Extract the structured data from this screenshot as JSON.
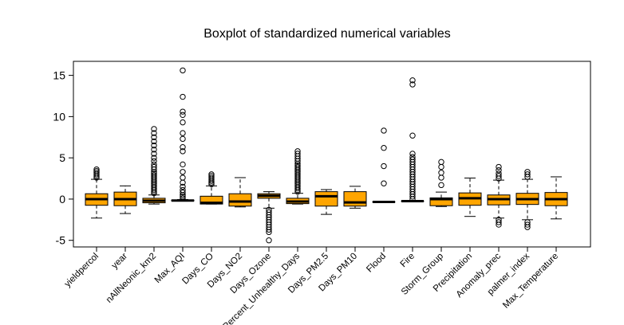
{
  "chart_data": {
    "type": "boxplot",
    "title": "Boxplot of standardized numerical variables",
    "xlabel": "",
    "ylabel": "",
    "ylim": [
      -5.8,
      16.7
    ],
    "yticks": [
      -5,
      0,
      5,
      10,
      15
    ],
    "grid": false,
    "legend": "none",
    "box_color": "#FFA500",
    "categories": [
      "yieldpercol",
      "year",
      "nAllNeonic_km2",
      "Max_AQI",
      "Days_CO",
      "Days_NO2",
      "Days_Ozone",
      "Percent_Unhealthy_Days",
      "Days_PM2.5",
      "Days_PM10",
      "Flood",
      "Fire",
      "Storm_Group",
      "Precipitation",
      "Anomaly_prec",
      "palmer_index",
      "Max_Temperature"
    ],
    "boxes": [
      {
        "whisker_low": -2.3,
        "q1": -0.75,
        "median": 0.0,
        "q3": 0.65,
        "whisker_high": 2.4,
        "outliers": [
          2.6,
          2.8,
          3.0,
          3.2,
          3.4,
          3.6
        ]
      },
      {
        "whisker_low": -1.75,
        "q1": -0.8,
        "median": 0.0,
        "q3": 0.85,
        "whisker_high": 1.6,
        "outliers": []
      },
      {
        "whisker_low": -0.6,
        "q1": -0.45,
        "median": -0.2,
        "q3": 0.1,
        "whisker_high": 0.5,
        "outliers": [
          0.7,
          0.9,
          1.1,
          1.3,
          1.5,
          1.7,
          1.9,
          2.1,
          2.3,
          2.5,
          2.7,
          2.9,
          3.1,
          3.3,
          3.6,
          3.9,
          4.2,
          4.6,
          5.0,
          5.5,
          6.0,
          6.5,
          7.0,
          7.5,
          8.0,
          8.5
        ]
      },
      {
        "whisker_low": -0.25,
        "q1": -0.22,
        "median": -0.18,
        "q3": -0.12,
        "whisker_high": -0.05,
        "outliers": [
          0.1,
          0.3,
          0.5,
          0.8,
          1.1,
          1.5,
          2.0,
          2.6,
          3.3,
          4.2,
          5.8,
          6.3,
          7.3,
          8.0,
          9.3,
          10.2,
          10.6,
          12.4,
          15.6
        ]
      },
      {
        "whisker_low": -0.6,
        "q1": -0.6,
        "median": -0.45,
        "q3": 0.35,
        "whisker_high": 1.6,
        "outliers": [
          1.8,
          2.0,
          2.2,
          2.4,
          2.6,
          2.8,
          3.0
        ]
      },
      {
        "whisker_low": -0.95,
        "q1": -0.85,
        "median": -0.3,
        "q3": 0.65,
        "whisker_high": 2.6,
        "outliers": []
      },
      {
        "whisker_low": -1.1,
        "q1": 0.1,
        "median": 0.4,
        "q3": 0.65,
        "whisker_high": 0.9,
        "outliers": [
          -1.3,
          -1.6,
          -1.9,
          -2.2,
          -2.5,
          -2.8,
          -3.1,
          -3.4,
          -3.7,
          -4.0,
          -5.0
        ]
      },
      {
        "whisker_low": -0.6,
        "q1": -0.55,
        "median": -0.3,
        "q3": 0.1,
        "whisker_high": 0.7,
        "outliers": [
          0.9,
          1.1,
          1.3,
          1.5,
          1.7,
          1.9,
          2.1,
          2.3,
          2.5,
          2.7,
          2.9,
          3.1,
          3.3,
          3.5,
          3.7,
          3.9,
          4.1,
          4.3,
          4.6,
          4.9,
          5.2,
          5.5,
          5.8
        ]
      },
      {
        "whisker_low": -1.85,
        "q1": -0.85,
        "median": 0.35,
        "q3": 0.9,
        "whisker_high": 1.15,
        "outliers": []
      },
      {
        "whisker_low": -1.1,
        "q1": -0.85,
        "median": -0.4,
        "q3": 0.9,
        "whisker_high": 1.55,
        "outliers": []
      },
      {
        "whisker_low": -0.35,
        "q1": -0.35,
        "median": -0.35,
        "q3": -0.35,
        "whisker_high": -0.35,
        "outliers": [
          1.9,
          4.0,
          6.2,
          8.3
        ]
      },
      {
        "whisker_low": -0.25,
        "q1": -0.25,
        "median": -0.25,
        "q3": -0.25,
        "whisker_high": -0.25,
        "outliers": [
          0.0,
          0.3,
          0.6,
          0.9,
          1.2,
          1.5,
          1.8,
          2.1,
          2.4,
          2.7,
          3.0,
          3.3,
          3.6,
          3.9,
          4.2,
          4.5,
          4.8,
          5.1,
          5.5,
          7.7,
          13.9,
          14.4
        ]
      },
      {
        "whisker_low": -0.9,
        "q1": -0.8,
        "median": 0.0,
        "q3": 0.15,
        "whisker_high": 0.85,
        "outliers": [
          1.7,
          2.6,
          3.2,
          3.9,
          4.5
        ]
      },
      {
        "whisker_low": -2.1,
        "q1": -0.75,
        "median": 0.1,
        "q3": 0.75,
        "whisker_high": 2.55,
        "outliers": []
      },
      {
        "whisker_low": -2.3,
        "q1": -0.7,
        "median": 0.0,
        "q3": 0.5,
        "whisker_high": 2.3,
        "outliers": [
          2.5,
          2.8,
          3.1,
          3.5,
          3.9,
          -2.5,
          -2.8,
          -3.1
        ]
      },
      {
        "whisker_low": -2.5,
        "q1": -0.65,
        "median": 0.0,
        "q3": 0.7,
        "whisker_high": 2.4,
        "outliers": [
          2.7,
          3.0,
          3.3,
          -2.8,
          -3.1,
          -3.4
        ]
      },
      {
        "whisker_low": -2.4,
        "q1": -0.8,
        "median": 0.0,
        "q3": 0.8,
        "whisker_high": 2.7,
        "outliers": []
      }
    ]
  }
}
